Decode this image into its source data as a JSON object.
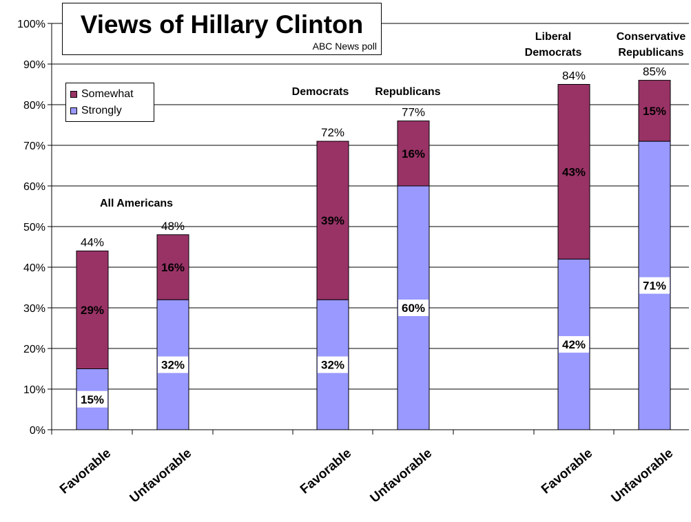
{
  "chart_data": {
    "type": "bar",
    "stacked": true,
    "title": "Views of Hillary Clinton",
    "subtitle": "ABC News poll",
    "categories": [
      "Favorable",
      "Unfavorable",
      "Favorable",
      "Unfavorable",
      "Favorable",
      "Unfavorable"
    ],
    "groups": [
      {
        "label": "All Americans",
        "categories": [
          0,
          1
        ]
      },
      {
        "label": "Democrats",
        "categories": [
          2
        ]
      },
      {
        "label": "Republicans",
        "categories": [
          3
        ]
      },
      {
        "label": "Liberal Democrats",
        "label_lines": [
          "Liberal",
          "Democrats"
        ],
        "categories": [
          4
        ]
      },
      {
        "label": "Conservative Republicans",
        "label_lines": [
          "Conservative",
          "Republicans"
        ],
        "categories": [
          5
        ]
      }
    ],
    "series": [
      {
        "name": "Strongly",
        "color": "#9999ff",
        "values": [
          15,
          32,
          32,
          60,
          42,
          71
        ],
        "labels": [
          "15%",
          "32%",
          "32%",
          "60%",
          "42%",
          "71%"
        ]
      },
      {
        "name": "Somewhat",
        "color": "#993366",
        "values": [
          29,
          16,
          39,
          16,
          43,
          15
        ],
        "labels": [
          "29%",
          "16%",
          "39%",
          "16%",
          "43%",
          "15%"
        ]
      }
    ],
    "totals": [
      "44%",
      "48%",
      "72%",
      "77%",
      "84%",
      "85%"
    ],
    "yticks": [
      "0%",
      "10%",
      "20%",
      "30%",
      "40%",
      "50%",
      "60%",
      "70%",
      "80%",
      "90%",
      "100%"
    ],
    "ylim": [
      0,
      100
    ],
    "grid": true,
    "legend_position": "top-left"
  }
}
